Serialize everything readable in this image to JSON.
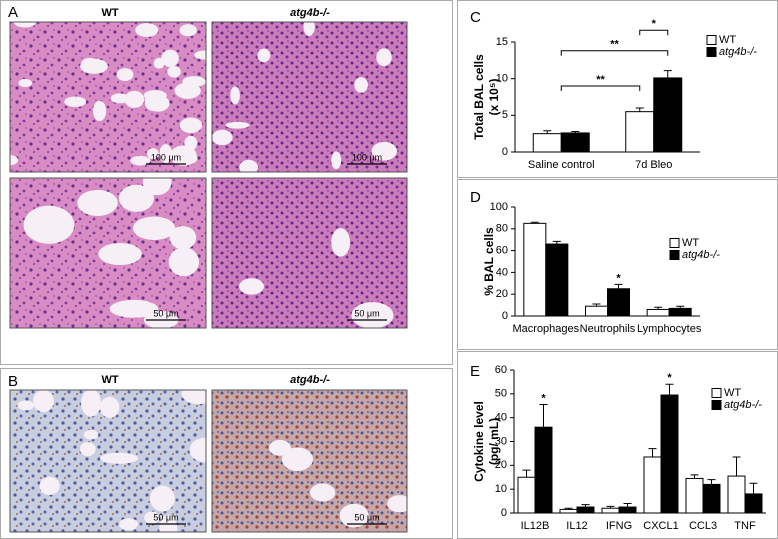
{
  "histology": {
    "A": {
      "label": "A",
      "columns": [
        "WT",
        "atg4b-/-"
      ],
      "scale_bars": [
        "100 μm",
        "100 μm",
        "50 μm",
        "50 μm"
      ]
    },
    "B": {
      "label": "B",
      "columns": [
        "WT",
        "atg4b-/-"
      ],
      "scale_bars": [
        "50 μm",
        "50 μm"
      ]
    }
  },
  "chart_data": [
    {
      "type": "bar",
      "label": "C",
      "ylabel": [
        "Total BAL cells",
        "(x 10⁵)"
      ],
      "categories": [
        "Saline control",
        "7d Bleo"
      ],
      "series": [
        {
          "name": "WT",
          "color": "#ffffff",
          "values": [
            2.5,
            5.5
          ],
          "error": [
            0.4,
            0.5
          ]
        },
        {
          "name": "atg4b-/-",
          "color": "#000000",
          "values": [
            2.6,
            10.1
          ],
          "error": [
            0.2,
            1.0
          ]
        }
      ],
      "ylim": [
        0,
        15
      ],
      "yticks": [
        0,
        5,
        10,
        15
      ],
      "legend": "upper right",
      "annotations": [
        "**",
        "**",
        "*"
      ]
    },
    {
      "type": "bar",
      "label": "D",
      "ylabel": [
        "% BAL cells"
      ],
      "categories": [
        "Macrophages",
        "Neutrophils",
        "Lymphocytes"
      ],
      "series": [
        {
          "name": "WT",
          "color": "#ffffff",
          "values": [
            85,
            9,
            6
          ],
          "error": [
            1,
            2,
            2
          ]
        },
        {
          "name": "atg4b-/-",
          "color": "#000000",
          "values": [
            66,
            25,
            7
          ],
          "error": [
            2.5,
            4,
            2
          ]
        }
      ],
      "ylim": [
        0,
        100
      ],
      "yticks": [
        0,
        20,
        40,
        60,
        80,
        100
      ],
      "legend": "right",
      "annotations": [
        "*"
      ]
    },
    {
      "type": "bar",
      "label": "E",
      "ylabel": [
        "Cytokine level",
        "(pg/ mL)"
      ],
      "categories": [
        "IL12B",
        "IL12",
        "IFNG",
        "CXCL1",
        "CCL3",
        "TNF"
      ],
      "series": [
        {
          "name": "WT",
          "color": "#ffffff",
          "values": [
            15,
            1.5,
            2,
            23.5,
            14.5,
            15.5
          ],
          "error": [
            3,
            0.5,
            0.8,
            3.5,
            1.5,
            8
          ]
        },
        {
          "name": "atg4b-/-",
          "color": "#000000",
          "values": [
            36,
            2.5,
            2.5,
            49.5,
            12,
            8
          ],
          "error": [
            9.5,
            1,
            1.5,
            4.5,
            2,
            4.5
          ]
        }
      ],
      "ylim": [
        0,
        60
      ],
      "yticks": [
        0,
        10,
        20,
        30,
        40,
        50,
        60
      ],
      "legend": "upper right",
      "annotations": [
        "*",
        "*"
      ]
    }
  ]
}
